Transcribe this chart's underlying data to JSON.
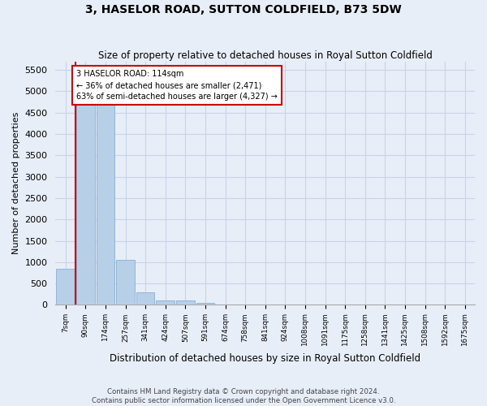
{
  "title": "3, HASELOR ROAD, SUTTON COLDFIELD, B73 5DW",
  "subtitle": "Size of property relative to detached houses in Royal Sutton Coldfield",
  "xlabel": "Distribution of detached houses by size in Royal Sutton Coldfield",
  "ylabel": "Number of detached properties",
  "footer_line1": "Contains HM Land Registry data © Crown copyright and database right 2024.",
  "footer_line2": "Contains public sector information licensed under the Open Government Licence v3.0.",
  "bin_labels": [
    "7sqm",
    "90sqm",
    "174sqm",
    "257sqm",
    "341sqm",
    "424sqm",
    "507sqm",
    "591sqm",
    "674sqm",
    "758sqm",
    "841sqm",
    "924sqm",
    "1008sqm",
    "1091sqm",
    "1175sqm",
    "1258sqm",
    "1341sqm",
    "1425sqm",
    "1508sqm",
    "1592sqm",
    "1675sqm"
  ],
  "bar_values": [
    850,
    5100,
    5100,
    1050,
    300,
    110,
    100,
    50,
    0,
    0,
    0,
    0,
    0,
    0,
    0,
    0,
    0,
    0,
    0,
    0,
    0
  ],
  "bar_color": "#b8cfe8",
  "bar_edge_color": "#88afd4",
  "ylim_max": 5700,
  "yticks": [
    0,
    500,
    1000,
    1500,
    2000,
    2500,
    3000,
    3500,
    4000,
    4500,
    5000,
    5500
  ],
  "vline_x": 0.5,
  "vline_color": "#cc0000",
  "annotation_line1": "3 HASELOR ROAD: 114sqm",
  "annotation_line2": "← 36% of detached houses are smaller (2,471)",
  "annotation_line3": "63% of semi-detached houses are larger (4,327) →",
  "annotation_box_facecolor": "#ffffff",
  "annotation_box_edgecolor": "#cc0000",
  "grid_color": "#c8d4e8",
  "background_color": "#e8eef8"
}
